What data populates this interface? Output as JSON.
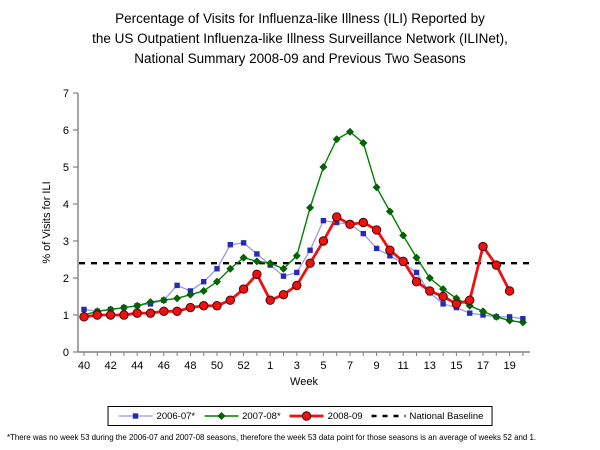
{
  "title": {
    "line1": "Percentage of Visits for Influenza-like Illness (ILI) Reported by",
    "line2": "the US Outpatient Influenza-like Illness Surveillance Network (ILINet),",
    "line3": "National Summary 2008-09 and Previous Two Seasons"
  },
  "footnote": "*There was no week 53 during the 2006-07 and 2007-08 seasons, therefore the week 53 data point for those seasons is an average of weeks 52 and 1.",
  "chart_data": {
    "type": "line",
    "x_axis": {
      "label": "Week",
      "categories": [
        "40",
        "41",
        "42",
        "43",
        "44",
        "45",
        "46",
        "47",
        "48",
        "49",
        "50",
        "51",
        "52",
        "53",
        "1",
        "2",
        "3",
        "4",
        "5",
        "6",
        "7",
        "8",
        "9",
        "10",
        "11",
        "12",
        "13",
        "14",
        "15",
        "16",
        "17",
        "18",
        "19",
        "20"
      ],
      "labeled_tick_indices": [
        0,
        2,
        4,
        6,
        8,
        10,
        12,
        14,
        16,
        18,
        20,
        22,
        24,
        26,
        28,
        30,
        32
      ]
    },
    "y_axis": {
      "label": "% of Visits for ILI",
      "min": 0,
      "max": 7,
      "tick_step": 1,
      "grid": false
    },
    "baseline": {
      "label": "National Baseline",
      "value": 2.4,
      "color": "#000000",
      "style": "dashed"
    },
    "legend_position": "bottom-center",
    "series": [
      {
        "name": "2006-07*",
        "marker": "square",
        "line_color": "#9999ee",
        "marker_color": "#2929b8",
        "line_width": 1.3,
        "values": [
          1.15,
          1.1,
          1.15,
          1.2,
          1.25,
          1.3,
          1.4,
          1.8,
          1.65,
          1.9,
          2.25,
          2.9,
          2.95,
          2.65,
          2.35,
          2.05,
          2.15,
          2.75,
          3.55,
          3.5,
          3.45,
          3.2,
          2.8,
          2.6,
          2.4,
          2.15,
          1.6,
          1.3,
          1.2,
          1.05,
          1.0,
          0.95,
          0.95,
          0.9
        ]
      },
      {
        "name": "2007-08*",
        "marker": "diamond",
        "line_color": "#008000",
        "marker_color": "#006600",
        "line_width": 1.4,
        "values": [
          1.0,
          1.1,
          1.15,
          1.2,
          1.25,
          1.35,
          1.4,
          1.45,
          1.55,
          1.65,
          1.9,
          2.25,
          2.55,
          2.45,
          2.4,
          2.25,
          2.6,
          3.9,
          5.0,
          5.75,
          5.95,
          5.65,
          4.45,
          3.8,
          3.15,
          2.55,
          2.0,
          1.7,
          1.45,
          1.25,
          1.1,
          0.95,
          0.85,
          0.8
        ]
      },
      {
        "name": "2008-09",
        "marker": "circle",
        "line_color": "#ee1111",
        "marker_color": "#ee1111",
        "line_width": 2.8,
        "values": [
          0.95,
          1.0,
          1.0,
          1.0,
          1.05,
          1.05,
          1.1,
          1.1,
          1.2,
          1.25,
          1.25,
          1.4,
          1.7,
          2.1,
          1.4,
          1.55,
          1.8,
          2.4,
          3.0,
          3.65,
          3.45,
          3.5,
          3.3,
          2.75,
          2.45,
          1.9,
          1.65,
          1.5,
          1.3,
          1.4,
          2.85,
          2.35,
          1.65
        ]
      }
    ]
  }
}
